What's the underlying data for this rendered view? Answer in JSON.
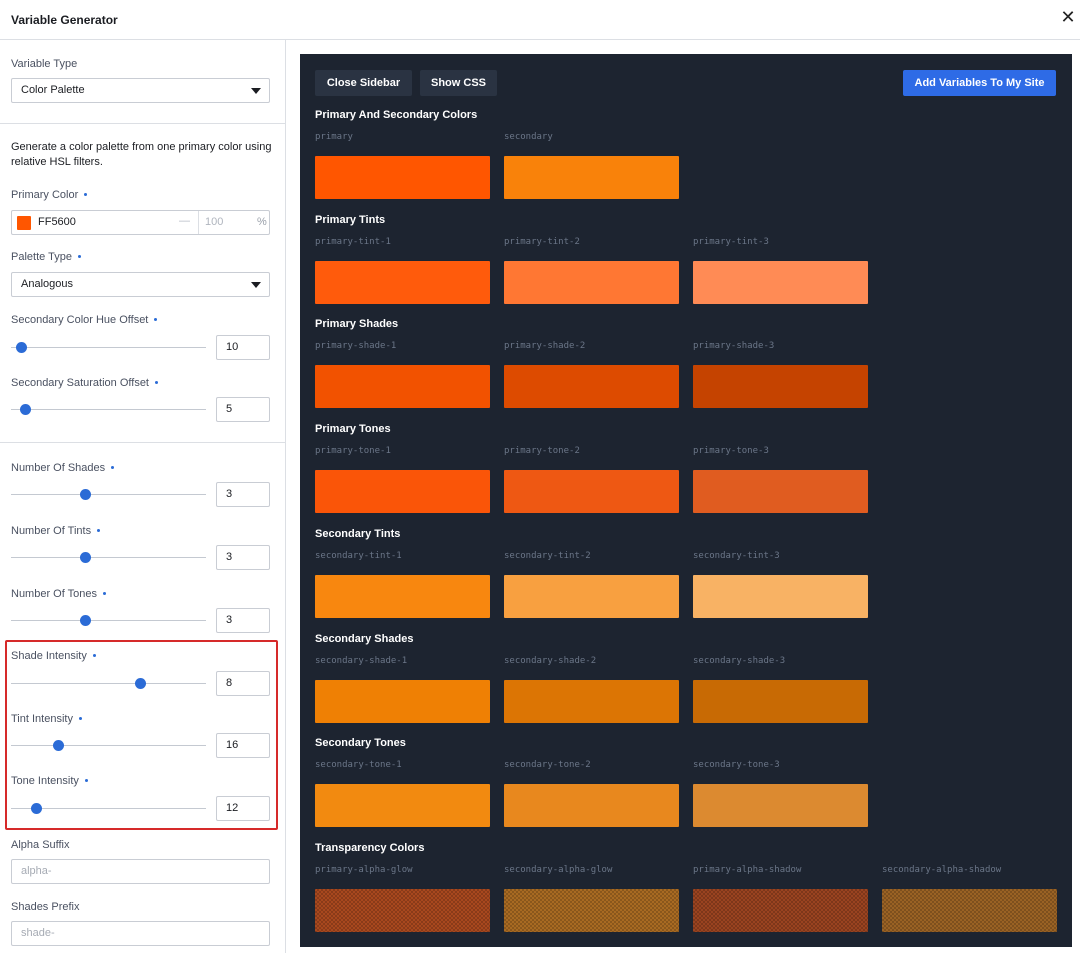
{
  "window": {
    "title": "Variable Generator",
    "close_glyph": "✕"
  },
  "sidebar": {
    "variable_type": {
      "label": "Variable Type",
      "value": "Color Palette"
    },
    "description": "Generate a color palette from one primary color using relative HSL filters.",
    "primary_color": {
      "label": "Primary Color",
      "hex": "FF5600",
      "swatch_color": "#ff5600",
      "separator": "—",
      "alpha_placeholder": "100",
      "percent": "%"
    },
    "palette_type": {
      "label": "Palette Type",
      "value": "Analogous"
    },
    "secondary_hue_offset": {
      "label": "Secondary Color Hue Offset",
      "value": "10",
      "level": 0.05
    },
    "secondary_saturation_offset": {
      "label": "Secondary Saturation Offset",
      "value": "5",
      "level": 0.07
    },
    "number_of_shades": {
      "label": "Number Of Shades",
      "value": "3",
      "level": 0.38
    },
    "number_of_tints": {
      "label": "Number Of Tints",
      "value": "3",
      "level": 0.38
    },
    "number_of_tones": {
      "label": "Number Of Tones",
      "value": "3",
      "level": 0.38
    },
    "shade_intensity": {
      "label": "Shade Intensity",
      "value": "8",
      "level": 0.66
    },
    "tint_intensity": {
      "label": "Tint Intensity",
      "value": "16",
      "level": 0.24
    },
    "tone_intensity": {
      "label": "Tone Intensity",
      "value": "12",
      "level": 0.13
    },
    "alpha_suffix": {
      "label": "Alpha Suffix",
      "placeholder": "alpha-"
    },
    "shades_prefix": {
      "label": "Shades Prefix",
      "placeholder": "shade-"
    }
  },
  "preview": {
    "close_sidebar": "Close Sidebar",
    "show_css": "Show CSS",
    "add_variables": "Add Variables To My Site",
    "sections": [
      {
        "title": "Primary And Secondary Colors",
        "swatches": [
          {
            "name": "primary",
            "color": "#ff5600"
          },
          {
            "name": "secondary",
            "color": "#f9820a"
          }
        ]
      },
      {
        "title": "Primary Tints",
        "swatches": [
          {
            "name": "primary-tint-1",
            "color": "#ff5b0c"
          },
          {
            "name": "primary-tint-2",
            "color": "#ff7733"
          },
          {
            "name": "primary-tint-3",
            "color": "#ff8b55"
          }
        ]
      },
      {
        "title": "Primary Shades",
        "swatches": [
          {
            "name": "primary-shade-1",
            "color": "#f25200"
          },
          {
            "name": "primary-shade-2",
            "color": "#dd4b00"
          },
          {
            "name": "primary-shade-3",
            "color": "#c54300"
          }
        ]
      },
      {
        "title": "Primary Tones",
        "swatches": [
          {
            "name": "primary-tone-1",
            "color": "#fa5508"
          },
          {
            "name": "primary-tone-2",
            "color": "#ee5813"
          },
          {
            "name": "primary-tone-3",
            "color": "#e05c20"
          }
        ]
      },
      {
        "title": "Secondary Tints",
        "swatches": [
          {
            "name": "secondary-tint-1",
            "color": "#f8870f"
          },
          {
            "name": "secondary-tint-2",
            "color": "#f8a040"
          },
          {
            "name": "secondary-tint-3",
            "color": "#f8b264"
          }
        ]
      },
      {
        "title": "Secondary Shades",
        "swatches": [
          {
            "name": "secondary-shade-1",
            "color": "#ef8004"
          },
          {
            "name": "secondary-shade-2",
            "color": "#dc7504"
          },
          {
            "name": "secondary-shade-3",
            "color": "#c86a04"
          }
        ]
      },
      {
        "title": "Secondary Tones",
        "swatches": [
          {
            "name": "secondary-tone-1",
            "color": "#f28a10"
          },
          {
            "name": "secondary-tone-2",
            "color": "#e8881e"
          },
          {
            "name": "secondary-tone-3",
            "color": "#dc8a30"
          }
        ]
      },
      {
        "title": "Transparency Colors",
        "swatches": [
          {
            "name": "primary-alpha-glow",
            "color": "#a8481e"
          },
          {
            "name": "secondary-alpha-glow",
            "color": "#a86a22"
          },
          {
            "name": "primary-alpha-shadow",
            "color": "#9a4320"
          },
          {
            "name": "secondary-alpha-shadow",
            "color": "#9a6224"
          }
        ]
      }
    ]
  }
}
